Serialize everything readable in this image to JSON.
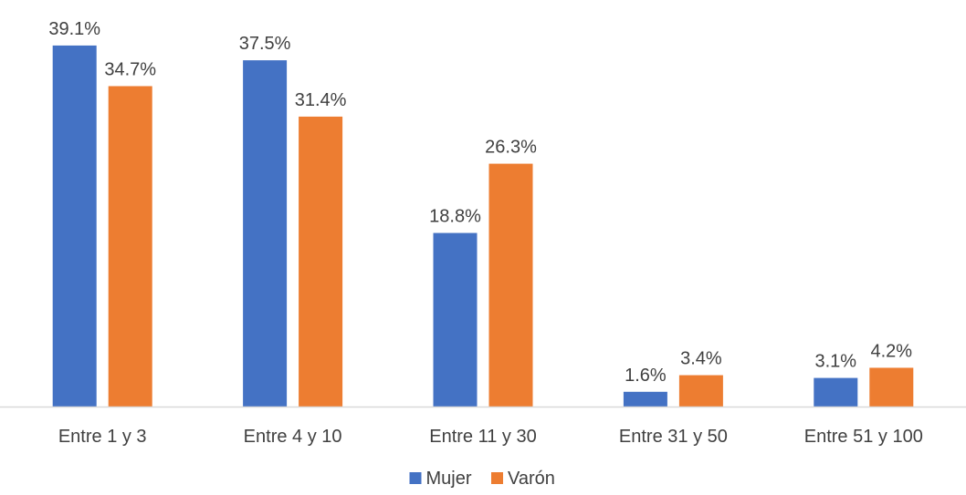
{
  "chart_data": {
    "type": "bar",
    "categories": [
      "Entre 1 y 3",
      "Entre 4 y 10",
      "Entre 11 y 30",
      "Entre 31 y 50",
      "Entre 51 y 100"
    ],
    "series": [
      {
        "name": "Mujer",
        "color": "#4472C4",
        "values": [
          39.1,
          37.5,
          18.8,
          1.6,
          3.1
        ],
        "labels": [
          "39.1%",
          "37.5%",
          "18.8%",
          "1.6%",
          "3.1%"
        ]
      },
      {
        "name": "Varón",
        "color": "#ED7D31",
        "values": [
          34.7,
          31.4,
          26.3,
          3.4,
          4.2
        ],
        "labels": [
          "34.7%",
          "31.4%",
          "26.3%",
          "3.4%",
          "4.2%"
        ]
      }
    ],
    "title": "",
    "xlabel": "",
    "ylabel": "",
    "ylim": [
      0,
      40
    ],
    "grid": false,
    "legend": "bottom-center",
    "axis_color": "#D9D9D9",
    "text_color": "#404040"
  }
}
